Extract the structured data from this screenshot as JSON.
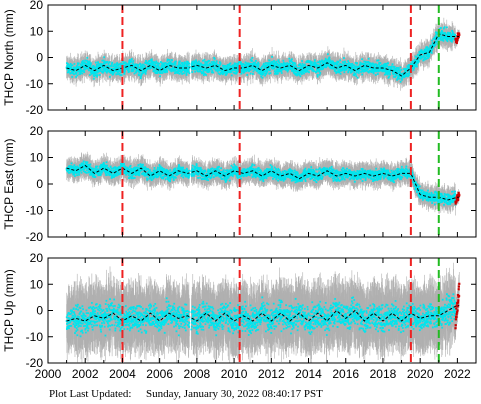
{
  "footer": {
    "label": "Plot Last Updated:",
    "value": "Sunday, January 30, 2022 08:40:17 PST"
  },
  "colors": {
    "points": "#00e5ee",
    "errorbars": "#b0b0b0",
    "model": "#000000",
    "recent": "#cc0000",
    "offset_red": "#ee2222",
    "offset_green": "#22bb22"
  },
  "chart_data": [
    {
      "type": "scatter",
      "title": "",
      "xlabel": "",
      "ylabel": "THCP North (mm)",
      "xlim": [
        2000,
        2023
      ],
      "ylim": [
        -20,
        20
      ],
      "xticks": [
        2000,
        2002,
        2004,
        2006,
        2008,
        2010,
        2012,
        2014,
        2016,
        2018,
        2020,
        2022
      ],
      "yticks": [
        -20,
        -10,
        0,
        10,
        20
      ],
      "x_tick_labels_shown": false,
      "grid": false,
      "series_x": [
        2001.0,
        2001.5,
        2002.0,
        2002.5,
        2003.0,
        2003.5,
        2004.0,
        2004.5,
        2005.0,
        2005.5,
        2006.0,
        2006.5,
        2007.0,
        2007.5,
        2008.0,
        2008.5,
        2009.0,
        2009.5,
        2010.0,
        2010.5,
        2011.0,
        2011.5,
        2012.0,
        2012.5,
        2013.0,
        2013.5,
        2014.0,
        2014.5,
        2015.0,
        2015.5,
        2016.0,
        2016.5,
        2017.0,
        2017.5,
        2018.0,
        2018.5,
        2019.0,
        2019.5,
        2020.0,
        2020.5,
        2021.0,
        2021.5,
        2022.0
      ],
      "series_y": [
        -4,
        -5,
        -3,
        -5,
        -3,
        -5,
        -4,
        -3,
        -5,
        -3,
        -5,
        -3,
        -4,
        -4,
        -3,
        -4,
        -3,
        -5,
        -4,
        -4,
        -3,
        -5,
        -3,
        -4,
        -3,
        -5,
        -3,
        -4,
        -2,
        -4,
        -3,
        -5,
        -3,
        -4,
        -4,
        -5,
        -7,
        -4,
        1,
        2,
        9,
        8,
        8
      ],
      "noise": 3.5,
      "errorbar": 3,
      "gaps": [
        [
          2007.6,
          2007.7
        ]
      ],
      "model_y": [
        -4,
        -5,
        -3,
        -5,
        -3,
        -5,
        -4,
        -3,
        -5,
        -3,
        -5,
        -3,
        -4,
        -4,
        -3,
        -4,
        -3,
        -5,
        -4,
        -4,
        -3,
        -5,
        -3,
        -4,
        -3,
        -5,
        -3,
        -4,
        -2,
        -4,
        -3,
        -5,
        -3,
        -4,
        -4,
        -5,
        -7,
        -4,
        1,
        2,
        9,
        8,
        8
      ],
      "model_start": 2001.0,
      "offsets_red": [
        2004.0,
        2010.3,
        2019.5
      ],
      "offsets_green": [
        2021.0
      ],
      "recent_x": [
        2021.9,
        2022.1
      ],
      "recent_y": [
        6,
        9
      ]
    },
    {
      "type": "scatter",
      "title": "",
      "xlabel": "",
      "ylabel": "THCP East (mm)",
      "xlim": [
        2000,
        2023
      ],
      "ylim": [
        -20,
        20
      ],
      "xticks": [
        2000,
        2002,
        2004,
        2006,
        2008,
        2010,
        2012,
        2014,
        2016,
        2018,
        2020,
        2022
      ],
      "yticks": [
        -20,
        -10,
        0,
        10,
        20
      ],
      "x_tick_labels_shown": false,
      "grid": false,
      "series_x": [
        2001.0,
        2001.5,
        2002.0,
        2002.5,
        2003.0,
        2003.5,
        2004.0,
        2004.5,
        2005.0,
        2005.5,
        2006.0,
        2006.5,
        2007.0,
        2007.5,
        2008.0,
        2008.5,
        2009.0,
        2009.5,
        2010.0,
        2010.5,
        2011.0,
        2011.5,
        2012.0,
        2012.5,
        2013.0,
        2013.5,
        2014.0,
        2014.5,
        2015.0,
        2015.5,
        2016.0,
        2016.5,
        2017.0,
        2017.5,
        2018.0,
        2018.5,
        2019.0,
        2019.5,
        2020.0,
        2020.5,
        2021.0,
        2021.5,
        2022.0
      ],
      "series_y": [
        6,
        5,
        7,
        4,
        6,
        4,
        6,
        4,
        6,
        3,
        5,
        3,
        5,
        4,
        5,
        3,
        5,
        3,
        5,
        4,
        5,
        3,
        5,
        3,
        4,
        2,
        4,
        3,
        5,
        3,
        4,
        3,
        4,
        3,
        4,
        3,
        4,
        4,
        -4,
        -5,
        -5,
        -6,
        -5
      ],
      "noise": 3,
      "errorbar": 3,
      "gaps": [
        [
          2007.6,
          2007.7
        ]
      ],
      "model_y": [
        6,
        5,
        7,
        4,
        6,
        4,
        6,
        4,
        6,
        3,
        5,
        3,
        5,
        4,
        5,
        3,
        5,
        3,
        5,
        4,
        5,
        3,
        5,
        3,
        4,
        2,
        4,
        3,
        5,
        3,
        4,
        3,
        4,
        3,
        4,
        3,
        4,
        4,
        -4,
        -5,
        -5,
        -6,
        -5
      ],
      "model_start": 2001.0,
      "offsets_red": [
        2004.0,
        2010.3,
        2019.5
      ],
      "offsets_green": [
        2021.0
      ],
      "recent_x": [
        2021.9,
        2022.1
      ],
      "recent_y": [
        -7,
        -4
      ]
    },
    {
      "type": "scatter",
      "title": "",
      "xlabel": "",
      "ylabel": "THCP Up (mm)",
      "xlim": [
        2000,
        2023
      ],
      "ylim": [
        -20,
        20
      ],
      "xticks": [
        2000,
        2002,
        2004,
        2006,
        2008,
        2010,
        2012,
        2014,
        2016,
        2018,
        2020,
        2022
      ],
      "yticks": [
        -20,
        -10,
        0,
        10,
        20
      ],
      "x_tick_labels_shown": true,
      "x_tick_labels": [
        "2000",
        "2002",
        "2004",
        "2006",
        "2008",
        "2010",
        "2012",
        "2014",
        "2016",
        "2018",
        "2020",
        "2022"
      ],
      "grid": false,
      "series_x": [
        2001.0,
        2001.5,
        2002.0,
        2002.5,
        2003.0,
        2003.5,
        2004.0,
        2004.5,
        2005.0,
        2005.5,
        2006.0,
        2006.5,
        2007.0,
        2007.5,
        2008.0,
        2008.5,
        2009.0,
        2009.5,
        2010.0,
        2010.5,
        2011.0,
        2011.5,
        2012.0,
        2012.5,
        2013.0,
        2013.5,
        2014.0,
        2014.5,
        2015.0,
        2015.5,
        2016.0,
        2016.5,
        2017.0,
        2017.5,
        2018.0,
        2018.5,
        2019.0,
        2019.5,
        2020.0,
        2020.5,
        2021.0,
        2021.5,
        2022.0
      ],
      "series_y": [
        -4,
        -3,
        -4,
        -2,
        -3,
        -1,
        -4,
        -2,
        -4,
        -1,
        -4,
        -1,
        -3,
        -2,
        -4,
        -1,
        -4,
        -1,
        -4,
        -2,
        -4,
        -1,
        -4,
        -1,
        -4,
        -1,
        -4,
        -1,
        -4,
        0,
        -3,
        0,
        -4,
        -1,
        -4,
        -1,
        -4,
        -1,
        -3,
        -2,
        -2,
        0,
        2
      ],
      "noise": 7,
      "errorbar": 9,
      "gaps": [
        [
          2007.6,
          2007.7
        ]
      ],
      "model_y": [
        -4,
        -3,
        -4,
        -2,
        -3,
        -1,
        -4,
        -2,
        -4,
        -1,
        -4,
        -1,
        -3,
        -2,
        -4,
        -1,
        -4,
        -1,
        -4,
        -2,
        -4,
        -1,
        -4,
        -1,
        -4,
        -1,
        -4,
        -1,
        -4,
        0,
        -3,
        0,
        -4,
        -1,
        -4,
        -1,
        -4,
        -1,
        -3,
        -2,
        -2,
        0,
        2
      ],
      "model_start": 2001.0,
      "offsets_red": [
        2004.0,
        2010.3,
        2019.5
      ],
      "offsets_green": [
        2021.0
      ],
      "recent_x": [
        2021.9,
        2022.1
      ],
      "recent_y": [
        -5,
        8
      ]
    }
  ]
}
